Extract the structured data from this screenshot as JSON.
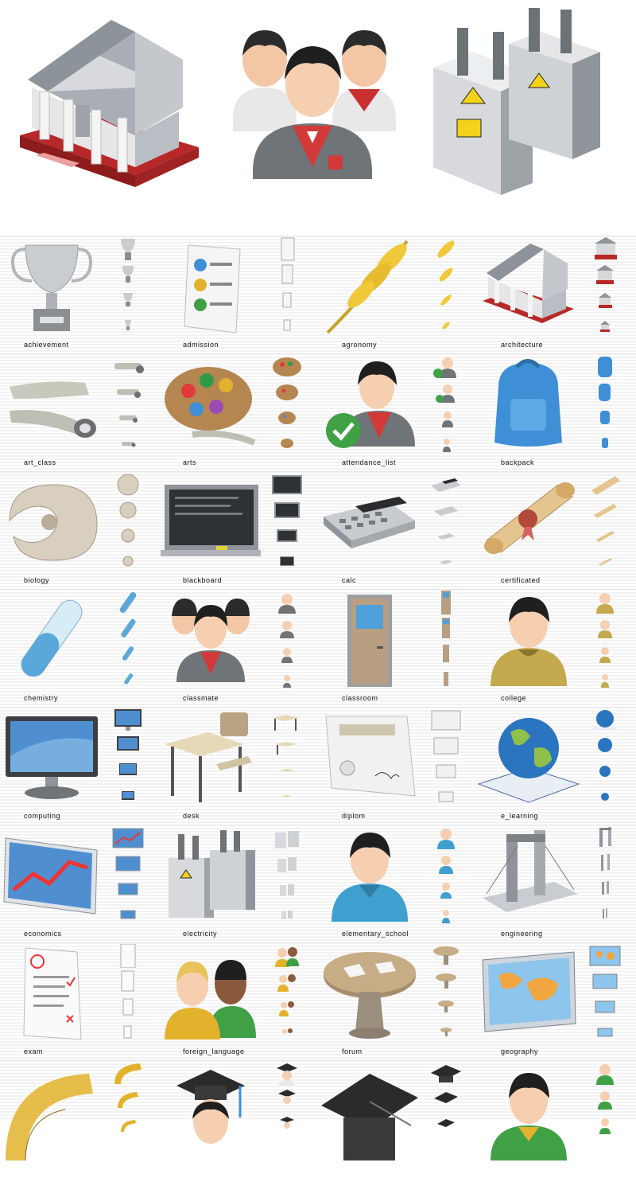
{
  "hero": {
    "items": [
      {
        "icon": "architecture-icon"
      },
      {
        "icon": "classmate-icon"
      },
      {
        "icon": "electricity-icon"
      }
    ]
  },
  "grid": {
    "rows": [
      [
        {
          "label": "achievement",
          "icon": "trophy"
        },
        {
          "label": "admission",
          "icon": "document"
        },
        {
          "label": "agronomy",
          "icon": "wheat"
        },
        {
          "label": "architecture",
          "icon": "building"
        }
      ],
      [
        {
          "label": "art_class",
          "icon": "paint-tubes"
        },
        {
          "label": "arts",
          "icon": "palette"
        },
        {
          "label": "attendance_list",
          "icon": "person-check"
        },
        {
          "label": "backpack",
          "icon": "backpack"
        }
      ],
      [
        {
          "label": "biology",
          "icon": "shell"
        },
        {
          "label": "blackboard",
          "icon": "blackboard"
        },
        {
          "label": "calc",
          "icon": "calculator"
        },
        {
          "label": "certificated",
          "icon": "scroll"
        }
      ],
      [
        {
          "label": "chemistry",
          "icon": "test-tube"
        },
        {
          "label": "classmate",
          "icon": "people-red"
        },
        {
          "label": "classroom",
          "icon": "door"
        },
        {
          "label": "college",
          "icon": "person-olive"
        }
      ],
      [
        {
          "label": "computing",
          "icon": "monitor"
        },
        {
          "label": "desk",
          "icon": "desk"
        },
        {
          "label": "diplom",
          "icon": "diploma"
        },
        {
          "label": "e_learning",
          "icon": "globe-book"
        }
      ],
      [
        {
          "label": "economics",
          "icon": "chart-board"
        },
        {
          "label": "electricity",
          "icon": "transformer"
        },
        {
          "label": "elementary_school",
          "icon": "person-blue"
        },
        {
          "label": "engineering",
          "icon": "bridge"
        }
      ],
      [
        {
          "label": "exam",
          "icon": "exam-paper"
        },
        {
          "label": "foreign_language",
          "icon": "two-people"
        },
        {
          "label": "forum",
          "icon": "round-table"
        },
        {
          "label": "geography",
          "icon": "map-board"
        }
      ],
      [
        {
          "label": "",
          "icon": "protractor"
        },
        {
          "label": "",
          "icon": "graduate"
        },
        {
          "label": "",
          "icon": "mortarboard"
        },
        {
          "label": "",
          "icon": "person-green"
        }
      ]
    ]
  },
  "colors": {
    "red": "#d23a3a",
    "gray": "#9aa0a6",
    "gold": "#e3b22c",
    "blue": "#3f8fd6",
    "skin": "#f3c7a5",
    "hair": "#2b2b2b"
  }
}
